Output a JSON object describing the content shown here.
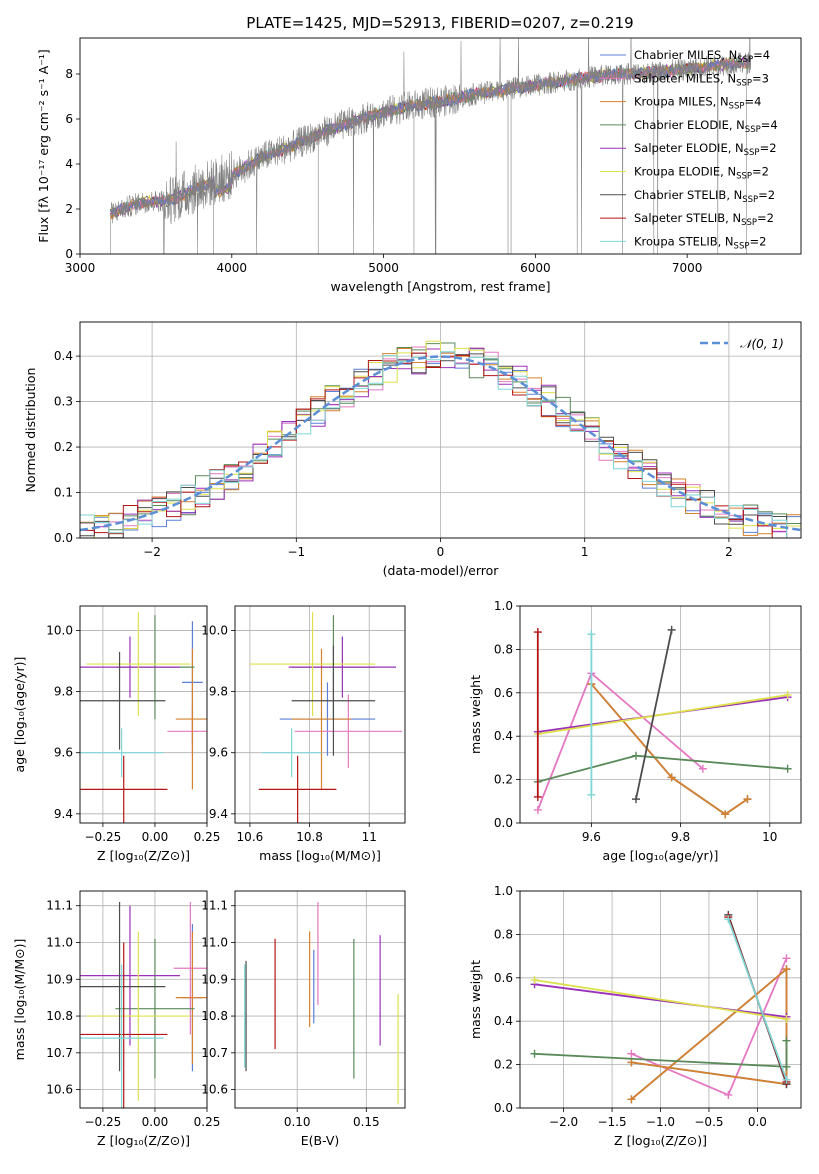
{
  "figure": {
    "title": "PLATE=1425, MJD=52913, FIBERID=0207, z=0.219"
  },
  "chart_data": [
    {
      "id": "spectrum",
      "type": "line",
      "title": "PLATE=1425, MJD=52913, FIBERID=0207, z=0.219",
      "xlabel": "wavelength [Angstrom, rest frame]",
      "ylabel": "Flux [fλ 10⁻¹⁷ erg cm⁻² s⁻¹ A⁻¹]",
      "xlim": [
        3000,
        7750
      ],
      "ylim": [
        0,
        9.6
      ],
      "xticks": [
        3000,
        4000,
        5000,
        6000,
        7000
      ],
      "yticks": [
        0,
        2,
        4,
        6,
        8
      ],
      "grid": false,
      "legend_position": "right",
      "data_color": "#808080",
      "continuum": {
        "x": [
          3200,
          3400,
          3600,
          3800,
          4000,
          4200,
          4400,
          4600,
          4800,
          5000,
          5200,
          5400,
          5600,
          5800,
          6000,
          6200,
          6400,
          6600,
          6800,
          7000,
          7200,
          7400
        ],
        "y": [
          1.8,
          2.3,
          2.4,
          3.0,
          3.5,
          4.3,
          4.8,
          5.4,
          5.9,
          6.3,
          6.6,
          6.8,
          7.1,
          7.3,
          7.5,
          7.7,
          7.9,
          8.0,
          8.1,
          8.2,
          8.4,
          8.5
        ]
      },
      "series": [
        {
          "name": "Chabrier MILES, N_SSP=4",
          "color": "#5b7fd6"
        },
        {
          "name": "Salpeter MILES, N_SSP=3",
          "color": "#e377c2"
        },
        {
          "name": "Kroupa MILES, N_SSP=4",
          "color": "#d6812b"
        },
        {
          "name": "Chabrier ELODIE, N_SSP=4",
          "color": "#5a8a5a"
        },
        {
          "name": "Salpeter ELODIE, N_SSP=2",
          "color": "#9b30b8"
        },
        {
          "name": "Kroupa ELODIE, N_SSP=2",
          "color": "#dde04a"
        },
        {
          "name": "Chabrier STELIB, N_SSP=2",
          "color": "#4d4d4d"
        },
        {
          "name": "Salpeter STELIB, N_SSP=2",
          "color": "#b31414"
        },
        {
          "name": "Kroupa STELIB, N_SSP=2",
          "color": "#7fd6d6"
        }
      ]
    },
    {
      "id": "residuals",
      "type": "histogram",
      "xlabel": "(data-model)/error",
      "ylabel": "Normed distribution",
      "xlim": [
        -2.5,
        2.5
      ],
      "ylim": [
        0,
        0.475
      ],
      "xticks": [
        -2,
        -1,
        0,
        1,
        2
      ],
      "yticks": [
        0.0,
        0.1,
        0.2,
        0.3,
        0.4
      ],
      "grid": true,
      "bin_width": 0.1,
      "legend": [
        {
          "label": "𝒩(0, 1)",
          "style": "dashed",
          "color": "#5b8fd6"
        }
      ],
      "legend_position": "top-right"
    },
    {
      "id": "age_vs_Z",
      "type": "errorbar",
      "xlabel": "Z [log₁₀(Z/Z⊙)]",
      "ylabel": "age  [log₁₀(age/yr)]",
      "xlim": [
        -0.36,
        0.25
      ],
      "ylim": [
        9.37,
        10.08
      ],
      "xticks": [
        -0.25,
        0.0,
        0.25
      ],
      "xticklabels": [
        "−0.25",
        "0.00",
        "0.25"
      ],
      "yticks": [
        9.4,
        9.6,
        9.8,
        10.0
      ],
      "points": [
        {
          "series": "Chabrier MILES",
          "x": 0.18,
          "xerr": 0.05,
          "y": 9.83,
          "yerr": 0.2
        },
        {
          "series": "Salpeter MILES",
          "x": 0.18,
          "xerr": 0.12,
          "y": 9.67,
          "yerr": 0.08
        },
        {
          "series": "Kroupa MILES",
          "x": 0.18,
          "xerr": 0.08,
          "y": 9.71,
          "yerr": 0.23
        },
        {
          "series": "Chabrier ELODIE",
          "x": 0.0,
          "xerr": 0.19,
          "y": 9.88,
          "yerr": 0.17
        },
        {
          "series": "Salpeter ELODIE",
          "x": -0.12,
          "xerr": 0.24,
          "y": 9.88,
          "yerr": 0.1
        },
        {
          "series": "Kroupa ELODIE",
          "x": -0.08,
          "xerr": 0.25,
          "y": 9.89,
          "yerr": 0.17
        },
        {
          "series": "Chabrier STELIB",
          "x": -0.17,
          "xerr": 0.22,
          "y": 9.77,
          "yerr": 0.16
        },
        {
          "series": "Salpeter STELIB",
          "x": -0.15,
          "xerr": 0.21,
          "y": 9.48,
          "yerr": 0.11
        },
        {
          "series": "Kroupa STELIB",
          "x": -0.16,
          "xerr": 0.2,
          "y": 9.6,
          "yerr": 0.08
        }
      ]
    },
    {
      "id": "age_vs_mass",
      "type": "errorbar",
      "xlabel": "mass [log₁₀(M/M⊙)]",
      "ylabel": "",
      "xlim": [
        10.55,
        11.12
      ],
      "ylim": [
        9.37,
        10.08
      ],
      "xticks": [
        10.6,
        10.8,
        11.0
      ],
      "yticks": [
        9.4,
        9.6,
        9.8,
        10.0
      ],
      "points": [
        {
          "series": "Chabrier MILES",
          "x": 10.86,
          "xerr": 0.16,
          "y": 9.71,
          "yerr": 0.12
        },
        {
          "series": "Salpeter MILES",
          "x": 10.93,
          "xerr": 0.18,
          "y": 9.67,
          "yerr": 0.12
        },
        {
          "series": "Kroupa MILES",
          "x": 10.84,
          "xerr": 0.1,
          "y": 9.71,
          "yerr": 0.23
        },
        {
          "series": "Chabrier ELODIE",
          "x": 10.88,
          "xerr": 0.14,
          "y": 9.88,
          "yerr": 0.17
        },
        {
          "series": "Salpeter ELODIE",
          "x": 10.91,
          "xerr": 0.18,
          "y": 9.88,
          "yerr": 0.1
        },
        {
          "series": "Kroupa ELODIE",
          "x": 10.81,
          "xerr": 0.21,
          "y": 9.89,
          "yerr": 0.17
        },
        {
          "series": "Chabrier STELIB",
          "x": 10.88,
          "xerr": 0.14,
          "y": 9.77,
          "yerr": 0.18
        },
        {
          "series": "Salpeter STELIB",
          "x": 10.76,
          "xerr": 0.13,
          "y": 9.48,
          "yerr": 0.11
        },
        {
          "series": "Kroupa STELIB",
          "x": 10.74,
          "xerr": 0.1,
          "y": 9.6,
          "yerr": 0.08
        }
      ]
    },
    {
      "id": "weight_vs_age",
      "type": "line",
      "xlabel": "age  [log₁₀(age/yr)]",
      "ylabel": "mass weight",
      "xlim": [
        9.44,
        10.07
      ],
      "ylim": [
        0,
        1.0
      ],
      "xticks": [
        9.6,
        9.8,
        10.0
      ],
      "yticks": [
        0.0,
        0.2,
        0.4,
        0.6,
        0.8,
        1.0
      ],
      "grid": true,
      "series": [
        {
          "name": "Chabrier MILES",
          "color": "#5b7fd6",
          "x": [
            9.6,
            9.78,
            9.9,
            9.95
          ],
          "y": [
            0.64,
            0.21,
            0.04,
            0.11
          ]
        },
        {
          "name": "Salpeter MILES",
          "color": "#e377c2",
          "x": [
            9.48,
            9.6,
            9.85
          ],
          "y": [
            0.06,
            0.69,
            0.25
          ]
        },
        {
          "name": "Kroupa MILES",
          "color": "#d6812b",
          "x": [
            9.6,
            9.78,
            9.9,
            9.95
          ],
          "y": [
            0.64,
            0.21,
            0.04,
            0.11
          ]
        },
        {
          "name": "Chabrier ELODIE",
          "color": "#5a8a5a",
          "x": [
            9.48,
            9.7,
            10.04
          ],
          "y": [
            0.19,
            0.31,
            0.25
          ]
        },
        {
          "name": "Salpeter ELODIE",
          "color": "#9b30b8",
          "x": [
            9.48,
            10.04
          ],
          "y": [
            0.42,
            0.58
          ]
        },
        {
          "name": "Kroupa ELODIE",
          "color": "#dde04a",
          "x": [
            9.48,
            10.04
          ],
          "y": [
            0.41,
            0.59
          ]
        },
        {
          "name": "Chabrier STELIB",
          "color": "#4d4d4d",
          "x": [
            9.7,
            9.78
          ],
          "y": [
            0.11,
            0.89
          ]
        },
        {
          "name": "Salpeter STELIB",
          "color": "#b31414",
          "x": [
            9.48,
            9.48
          ],
          "y": [
            0.12,
            0.88
          ]
        },
        {
          "name": "Kroupa STELIB",
          "color": "#7fd6d6",
          "x": [
            9.6,
            9.6
          ],
          "y": [
            0.13,
            0.87
          ]
        }
      ]
    },
    {
      "id": "mass_vs_Z",
      "type": "errorbar",
      "xlabel": "Z [log₁₀(Z/Z⊙)]",
      "ylabel": "mass [log₁₀(M/M⊙)]",
      "xlim": [
        -0.36,
        0.25
      ],
      "ylim": [
        10.55,
        11.14
      ],
      "xticks": [
        -0.25,
        0.0,
        0.25
      ],
      "xticklabels": [
        "−0.25",
        "0.00",
        "0.25"
      ],
      "yticks": [
        10.6,
        10.7,
        10.8,
        10.9,
        11.0,
        11.1
      ],
      "points": [
        {
          "series": "Chabrier MILES",
          "x": 0.18,
          "xerr": 0.05,
          "y": 10.85,
          "yerr": 0.2
        },
        {
          "series": "Salpeter MILES",
          "x": 0.17,
          "xerr": 0.08,
          "y": 10.93,
          "yerr": 0.18
        },
        {
          "series": "Kroupa MILES",
          "x": 0.18,
          "xerr": 0.08,
          "y": 10.85,
          "yerr": 0.18
        },
        {
          "series": "Chabrier ELODIE",
          "x": 0.0,
          "xerr": 0.19,
          "y": 10.82,
          "yerr": 0.19
        },
        {
          "series": "Salpeter ELODIE",
          "x": -0.12,
          "xerr": 0.24,
          "y": 10.91,
          "yerr": 0.19
        },
        {
          "series": "Kroupa ELODIE",
          "x": -0.08,
          "xerr": 0.25,
          "y": 10.8,
          "yerr": 0.23
        },
        {
          "series": "Chabrier STELIB",
          "x": -0.17,
          "xerr": 0.22,
          "y": 10.88,
          "yerr": 0.23
        },
        {
          "series": "Salpeter STELIB",
          "x": -0.15,
          "xerr": 0.21,
          "y": 10.75,
          "yerr": 0.25
        },
        {
          "series": "Kroupa STELIB",
          "x": -0.16,
          "xerr": 0.2,
          "y": 10.74,
          "yerr": 0.2
        }
      ]
    },
    {
      "id": "mass_vs_ebv",
      "type": "errorbar",
      "xlabel": "E(B-V)",
      "ylabel": "",
      "xlim": [
        0.055,
        0.178
      ],
      "ylim": [
        10.55,
        11.14
      ],
      "xticks": [
        0.1,
        0.15
      ],
      "xticklabels": [
        "0.10",
        "0.15"
      ],
      "yticks": [
        10.6,
        10.7,
        10.8,
        10.9,
        11.0,
        11.1
      ],
      "points": [
        {
          "series": "Chabrier MILES",
          "x": 0.112,
          "xerr": 0.0,
          "y": 10.88,
          "yerr": 0.1
        },
        {
          "series": "Salpeter MILES",
          "x": 0.115,
          "xerr": 0.0,
          "y": 10.97,
          "yerr": 0.14
        },
        {
          "series": "Kroupa MILES",
          "x": 0.109,
          "xerr": 0.0,
          "y": 10.9,
          "yerr": 0.13
        },
        {
          "series": "Chabrier ELODIE",
          "x": 0.141,
          "xerr": 0.0,
          "y": 10.82,
          "yerr": 0.19
        },
        {
          "series": "Salpeter ELODIE",
          "x": 0.16,
          "xerr": 0.0,
          "y": 10.87,
          "yerr": 0.15
        },
        {
          "series": "Kroupa ELODIE",
          "x": 0.173,
          "xerr": 0.0,
          "y": 10.71,
          "yerr": 0.15
        },
        {
          "series": "Chabrier STELIB",
          "x": 0.063,
          "xerr": 0.0,
          "y": 10.8,
          "yerr": 0.15
        },
        {
          "series": "Salpeter STELIB",
          "x": 0.084,
          "xerr": 0.0,
          "y": 10.86,
          "yerr": 0.15
        },
        {
          "series": "Kroupa STELIB",
          "x": 0.062,
          "xerr": 0.0,
          "y": 10.8,
          "yerr": 0.14
        }
      ]
    },
    {
      "id": "weight_vs_Z",
      "type": "line",
      "xlabel": "Z [log₁₀(Z/Z⊙)]",
      "ylabel": "mass weight",
      "xlim": [
        -2.45,
        0.45
      ],
      "ylim": [
        0,
        1.0
      ],
      "xticks": [
        -2.0,
        -1.5,
        -1.0,
        -0.5,
        0.0
      ],
      "xticklabels": [
        "−2.0",
        "−1.5",
        "−1.0",
        "−0.5",
        "0.0"
      ],
      "yticks": [
        0.0,
        0.2,
        0.4,
        0.6,
        0.8,
        1.0
      ],
      "grid": true,
      "series": [
        {
          "name": "Chabrier MILES",
          "color": "#5b7fd6",
          "x": [
            -1.3,
            0.3,
            0.3,
            -1.3
          ],
          "y": [
            0.04,
            0.64,
            0.11,
            0.21
          ]
        },
        {
          "name": "Salpeter MILES",
          "color": "#e377c2",
          "x": [
            -1.3,
            -0.3,
            0.3
          ],
          "y": [
            0.25,
            0.06,
            0.69
          ]
        },
        {
          "name": "Kroupa MILES",
          "color": "#d6812b",
          "x": [
            -1.3,
            0.3,
            0.3,
            -1.3
          ],
          "y": [
            0.04,
            0.64,
            0.11,
            0.21
          ]
        },
        {
          "name": "Chabrier ELODIE",
          "color": "#5a8a5a",
          "x": [
            -2.3,
            0.3,
            0.3
          ],
          "y": [
            0.25,
            0.19,
            0.31
          ]
        },
        {
          "name": "Salpeter ELODIE",
          "color": "#9b30b8",
          "x": [
            -2.3,
            0.3
          ],
          "y": [
            0.57,
            0.42
          ]
        },
        {
          "name": "Kroupa ELODIE",
          "color": "#dde04a",
          "x": [
            -2.3,
            0.3
          ],
          "y": [
            0.59,
            0.41
          ]
        },
        {
          "name": "Chabrier STELIB",
          "color": "#4d4d4d",
          "x": [
            -0.3,
            0.3
          ],
          "y": [
            0.89,
            0.11
          ]
        },
        {
          "name": "Salpeter STELIB",
          "color": "#b31414",
          "x": [
            -0.3,
            0.3
          ],
          "y": [
            0.88,
            0.12
          ]
        },
        {
          "name": "Kroupa STELIB",
          "color": "#7fd6d6",
          "x": [
            -0.3,
            0.3
          ],
          "y": [
            0.87,
            0.13
          ]
        }
      ]
    }
  ]
}
